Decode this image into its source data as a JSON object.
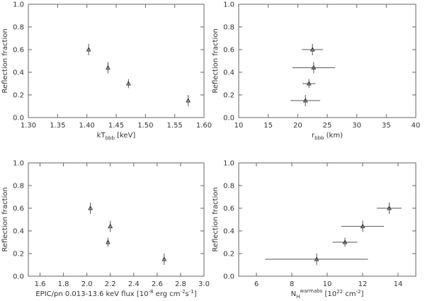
{
  "chart_data": [
    {
      "type": "scatter",
      "panel": "top-left",
      "xlim": [
        1.3,
        1.6
      ],
      "ylim": [
        0.0,
        1.0
      ],
      "xticks": [
        "1.30",
        "1.35",
        "1.40",
        "1.45",
        "1.50",
        "1.55",
        "1.60"
      ],
      "yticks": [
        "0.0",
        "0.2",
        "0.4",
        "0.6",
        "0.8",
        "1.0"
      ],
      "xlabel": "kT",
      "xlabel_sub": "bbb",
      "xlabel_tail": " [keV]",
      "ylabel": "Reflection fraction",
      "points": [
        {
          "x": 1.403,
          "y": 0.6,
          "yerr": 0.05,
          "xerr": 0
        },
        {
          "x": 1.436,
          "y": 0.44,
          "yerr": 0.05,
          "xerr": 0
        },
        {
          "x": 1.471,
          "y": 0.3,
          "yerr": 0.04,
          "xerr": 0
        },
        {
          "x": 1.573,
          "y": 0.15,
          "yerr": 0.05,
          "xerr": 0
        }
      ]
    },
    {
      "type": "scatter",
      "panel": "top-right",
      "xlim": [
        10,
        40
      ],
      "ylim": [
        0.0,
        1.0
      ],
      "xticks": [
        "10",
        "15",
        "20",
        "25",
        "30",
        "35",
        "40"
      ],
      "yticks": [
        "0.0",
        "0.2",
        "0.4",
        "0.6",
        "0.8",
        "1.0"
      ],
      "xlabel": "r",
      "xlabel_sub": "bbb",
      "xlabel_tail": " (km)",
      "ylabel": "Reflection fraction",
      "points": [
        {
          "x": 22.5,
          "y": 0.6,
          "yerr": 0.05,
          "xerr": 1.8
        },
        {
          "x": 22.7,
          "y": 0.44,
          "yerr": 0.05,
          "xerr": 3.6
        },
        {
          "x": 21.9,
          "y": 0.3,
          "yerr": 0.04,
          "xerr": 1.1
        },
        {
          "x": 21.3,
          "y": 0.15,
          "yerr": 0.05,
          "xerr": 2.5
        }
      ]
    },
    {
      "type": "scatter",
      "panel": "bottom-left",
      "xlim": [
        1.5,
        3.0
      ],
      "ylim": [
        0.0,
        1.0
      ],
      "xticks": [
        "1.6",
        "1.8",
        "2.0",
        "2.2",
        "2.4",
        "2.6",
        "2.8",
        "3.0"
      ],
      "xtick_values": [
        1.6,
        1.8,
        2.0,
        2.2,
        2.4,
        2.6,
        2.8,
        3.0
      ],
      "yticks": [
        "0.0",
        "0.2",
        "0.4",
        "0.6",
        "0.8",
        "1.0"
      ],
      "xlabel": "EPIC/pn 0.013-13.6 keV flux [10",
      "xlabel_sup": "-8",
      "xlabel_tail": " erg cm",
      "xlabel_sup2": "-2",
      "xlabel_tail2": "s",
      "xlabel_sup3": "-1",
      "xlabel_tail3": "]",
      "ylabel": "Reflection fraction",
      "points": [
        {
          "x": 2.03,
          "y": 0.6,
          "yerr": 0.05,
          "xerr": 0
        },
        {
          "x": 2.2,
          "y": 0.44,
          "yerr": 0.05,
          "xerr": 0
        },
        {
          "x": 2.18,
          "y": 0.3,
          "yerr": 0.04,
          "xerr": 0
        },
        {
          "x": 2.66,
          "y": 0.15,
          "yerr": 0.05,
          "xerr": 0
        }
      ]
    },
    {
      "type": "scatter",
      "panel": "bottom-right",
      "xlim": [
        5,
        15
      ],
      "ylim": [
        0.0,
        1.0
      ],
      "xticks": [
        "6",
        "8",
        "10",
        "12",
        "14"
      ],
      "xtick_values": [
        6,
        8,
        10,
        12,
        14
      ],
      "yticks": [
        "0.0",
        "0.2",
        "0.4",
        "0.6",
        "0.8",
        "1.0"
      ],
      "xlabel": "N",
      "xlabel_sub": "H",
      "xlabel_sup": "warmabs",
      "xlabel_tail": "  [10",
      "xlabel_sup2": "22",
      "xlabel_tail2": " cm",
      "xlabel_sup3": "-2",
      "xlabel_tail3": "]",
      "ylabel": "Reflection fraction",
      "points": [
        {
          "x": 9.4,
          "y": 0.15,
          "yerr": 0.05,
          "xerr": 2.9
        },
        {
          "x": 11.0,
          "y": 0.3,
          "yerr": 0.04,
          "xerr": 0.7
        },
        {
          "x": 12.0,
          "y": 0.44,
          "yerr": 0.05,
          "xerr": 1.2
        },
        {
          "x": 13.5,
          "y": 0.6,
          "yerr": 0.05,
          "xerr": 0.7
        }
      ]
    }
  ]
}
